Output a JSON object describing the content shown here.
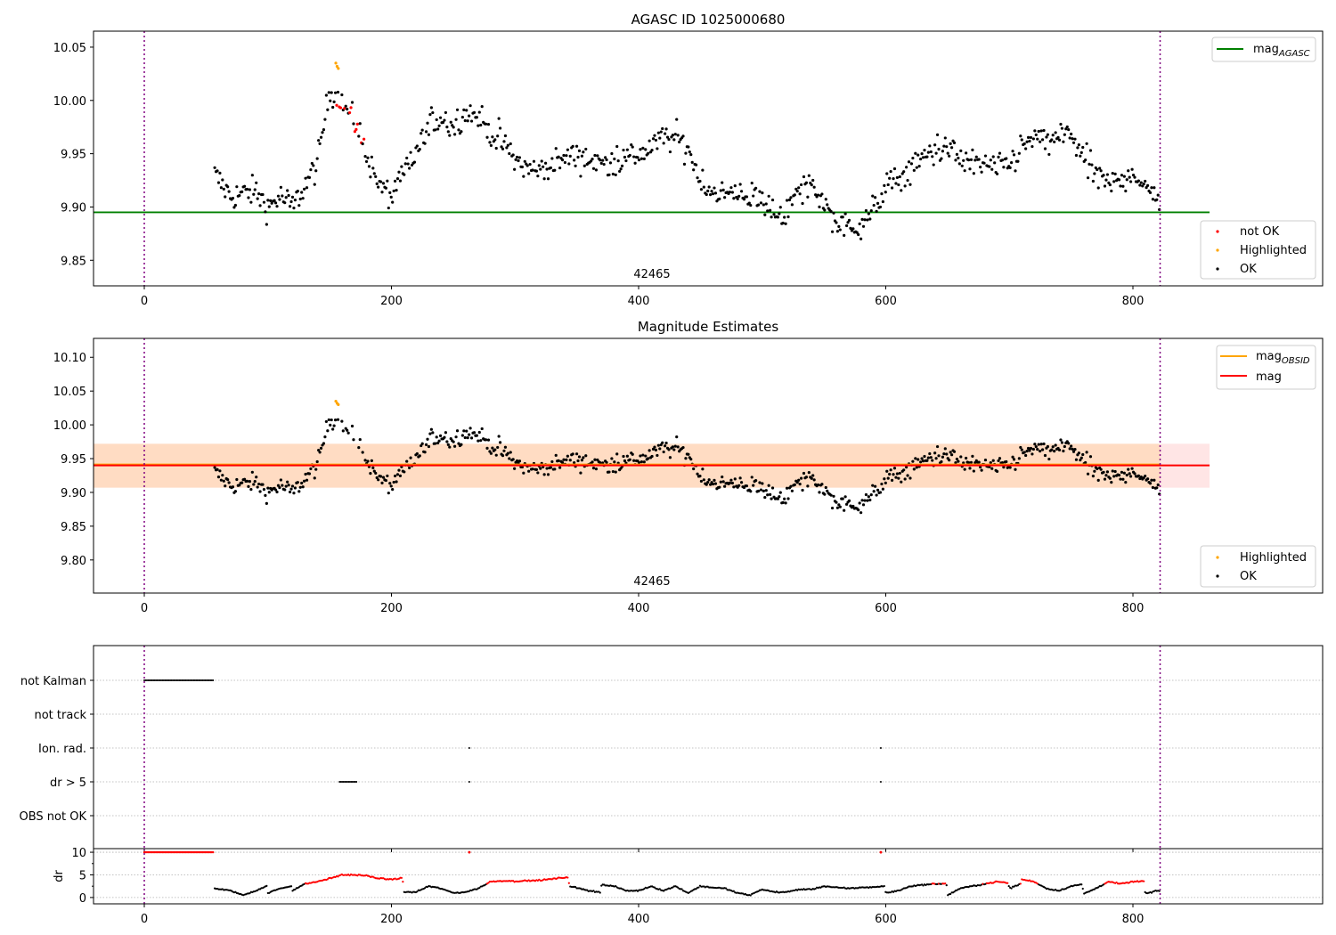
{
  "chart_data": [
    {
      "type": "scatter",
      "title": "AGASC ID 1025000680",
      "xlim": [
        -41,
        953
      ],
      "ylim": [
        9.826,
        10.065
      ],
      "xticks": [
        "0",
        "200",
        "400",
        "600",
        "800"
      ],
      "yticks": [
        "9.85",
        "9.90",
        "9.95",
        "10.00",
        "10.05"
      ],
      "obsid_label": "42465",
      "obs_boundaries": [
        0,
        822
      ],
      "reference_line": {
        "name": "mag_AGASC",
        "label_main": "mag",
        "label_sub": "AGASC",
        "value": 9.895,
        "x_range": [
          -41,
          862
        ],
        "color": "#008000"
      },
      "legend_lines": [
        {
          "label_main": "mag",
          "label_sub": "AGASC",
          "color": "#008000"
        }
      ],
      "legend_points": [
        {
          "label": "not OK",
          "color": "#ff0000"
        },
        {
          "label": "Highlighted",
          "color": "#ffa500"
        },
        {
          "label": "OK",
          "color": "#000000"
        }
      ],
      "mag_trend": {
        "x": [
          57,
          70,
          90,
          100,
          110,
          120,
          130,
          140,
          150,
          160,
          170,
          180,
          190,
          200,
          210,
          220,
          230,
          240,
          250,
          260,
          270,
          280,
          290,
          300,
          310,
          320,
          330,
          340,
          350,
          360,
          370,
          380,
          390,
          400,
          410,
          420,
          430,
          440,
          450,
          460,
          470,
          480,
          490,
          500,
          510,
          520,
          530,
          540,
          550,
          560,
          570,
          580,
          590,
          600,
          610,
          620,
          630,
          640,
          650,
          660,
          670,
          680,
          690,
          700,
          710,
          720,
          730,
          740,
          750,
          760,
          770,
          780,
          790,
          800,
          810,
          820
        ],
        "y": [
          9.93,
          9.91,
          9.915,
          9.9,
          9.91,
          9.9,
          9.92,
          9.94,
          10.01,
          10.0,
          9.98,
          9.95,
          9.92,
          9.91,
          9.93,
          9.95,
          9.975,
          9.985,
          9.975,
          9.99,
          9.985,
          9.97,
          9.96,
          9.945,
          9.935,
          9.935,
          9.94,
          9.945,
          9.95,
          9.945,
          9.94,
          9.945,
          9.945,
          9.95,
          9.955,
          9.965,
          9.965,
          9.955,
          9.925,
          9.915,
          9.91,
          9.915,
          9.91,
          9.905,
          9.895,
          9.895,
          9.915,
          9.92,
          9.905,
          9.885,
          9.88,
          9.885,
          9.895,
          9.92,
          9.925,
          9.935,
          9.945,
          9.955,
          9.955,
          9.945,
          9.94,
          9.94,
          9.935,
          9.94,
          9.955,
          9.965,
          9.96,
          9.965,
          9.97,
          9.945,
          9.93,
          9.92,
          9.925,
          9.935,
          9.915,
          9.91
        ]
      },
      "not_ok_x_range": [
        155,
        178
      ],
      "highlighted": [
        {
          "x": 155,
          "y": 10.035
        },
        {
          "x": 156,
          "y": 10.032
        },
        {
          "x": 157,
          "y": 10.03
        }
      ]
    },
    {
      "type": "scatter",
      "title": "Magnitude Estimates",
      "xlim": [
        -41,
        953
      ],
      "ylim": [
        9.751,
        10.128
      ],
      "xticks": [
        "0",
        "200",
        "400",
        "600",
        "800"
      ],
      "yticks": [
        "9.80",
        "9.85",
        "9.90",
        "9.95",
        "10.00",
        "10.05",
        "10.10"
      ],
      "obsid_label": "42465",
      "mag_obsid": {
        "label_main": "mag",
        "label_sub": "OBSID",
        "value": 9.94,
        "x_range": [
          -41,
          822
        ],
        "color": "#ffa500",
        "band": [
          9.907,
          9.972
        ]
      },
      "mag": {
        "label": "mag",
        "value": 9.94,
        "x_range": [
          -41,
          862
        ],
        "color": "#ff0000",
        "band": [
          9.907,
          9.972
        ]
      },
      "legend_points": [
        {
          "label": "Highlighted",
          "color": "#ffa500"
        },
        {
          "label": "OK",
          "color": "#000000"
        }
      ]
    },
    {
      "type": "scatter",
      "title": "",
      "categories": [
        "not Kalman",
        "not track",
        "Ion. rad.",
        "dr > 5",
        "OBS not OK"
      ],
      "flags": {
        "not Kalman": [
          [
            0,
            56
          ]
        ],
        "not track": [],
        "Ion. rad.": [
          [
            263,
            263
          ],
          [
            596,
            596
          ]
        ],
        "dr > 5": [
          [
            158,
            172
          ],
          [
            263,
            263
          ],
          [
            596,
            596
          ]
        ],
        "OBS not OK": []
      }
    },
    {
      "type": "scatter",
      "ylabel": "dr",
      "ylim": [
        -1.4,
        10.8
      ],
      "yticks": [
        "0",
        "5",
        "10"
      ],
      "xticks": [
        "0",
        "200",
        "400",
        "600",
        "800"
      ],
      "red_threshold": 3,
      "dr_saturated": {
        "x_range": [
          0,
          56
        ],
        "value": 10
      },
      "dr_trend": {
        "x": [
          57,
          70,
          80,
          90,
          99,
          100,
          110,
          119,
          120,
          130,
          140,
          150,
          160,
          170,
          180,
          190,
          200,
          209,
          210,
          220,
          230,
          240,
          250,
          260,
          270,
          279,
          280,
          290,
          300,
          320,
          343,
          344,
          360,
          369,
          370,
          380,
          390,
          400,
          410,
          420,
          430,
          440,
          450,
          460,
          470,
          480,
          490,
          500,
          510,
          520,
          530,
          540,
          550,
          560,
          570,
          580,
          590,
          599,
          600,
          610,
          620,
          630,
          640,
          649,
          650,
          660,
          670,
          680,
          690,
          699,
          700,
          709,
          710,
          720,
          730,
          740,
          750,
          759,
          760,
          770,
          780,
          790,
          800,
          809,
          810,
          820
        ],
        "y": [
          2,
          1.5,
          0.5,
          1.5,
          2.5,
          1,
          2,
          2.5,
          1.6,
          3,
          3.5,
          4.2,
          5,
          5,
          4.8,
          4.2,
          4,
          4.3,
          1.2,
          1.2,
          2.5,
          2,
          1,
          1.2,
          2,
          3.3,
          3.5,
          3.7,
          3.6,
          3.8,
          4.5,
          2.5,
          1.5,
          1.2,
          2.8,
          2.5,
          1.5,
          1.5,
          2.5,
          1.5,
          2.5,
          1,
          2.5,
          2.2,
          2,
          1,
          0.5,
          1.8,
          1.2,
          1.2,
          1.8,
          1.8,
          2.5,
          2.2,
          2,
          2.2,
          2.3,
          2.5,
          1,
          1.5,
          2.5,
          2.8,
          3,
          3.1,
          0.5,
          2,
          2.5,
          3,
          3.5,
          3.2,
          2,
          3,
          4,
          3.5,
          2,
          1.5,
          2.5,
          2.9,
          0.8,
          2,
          3.5,
          3,
          3.5,
          3.6,
          0.8,
          1.5
        ]
      },
      "isolated": [
        {
          "x": 263,
          "y": 10
        },
        {
          "x": 596,
          "y": 10
        }
      ]
    }
  ]
}
